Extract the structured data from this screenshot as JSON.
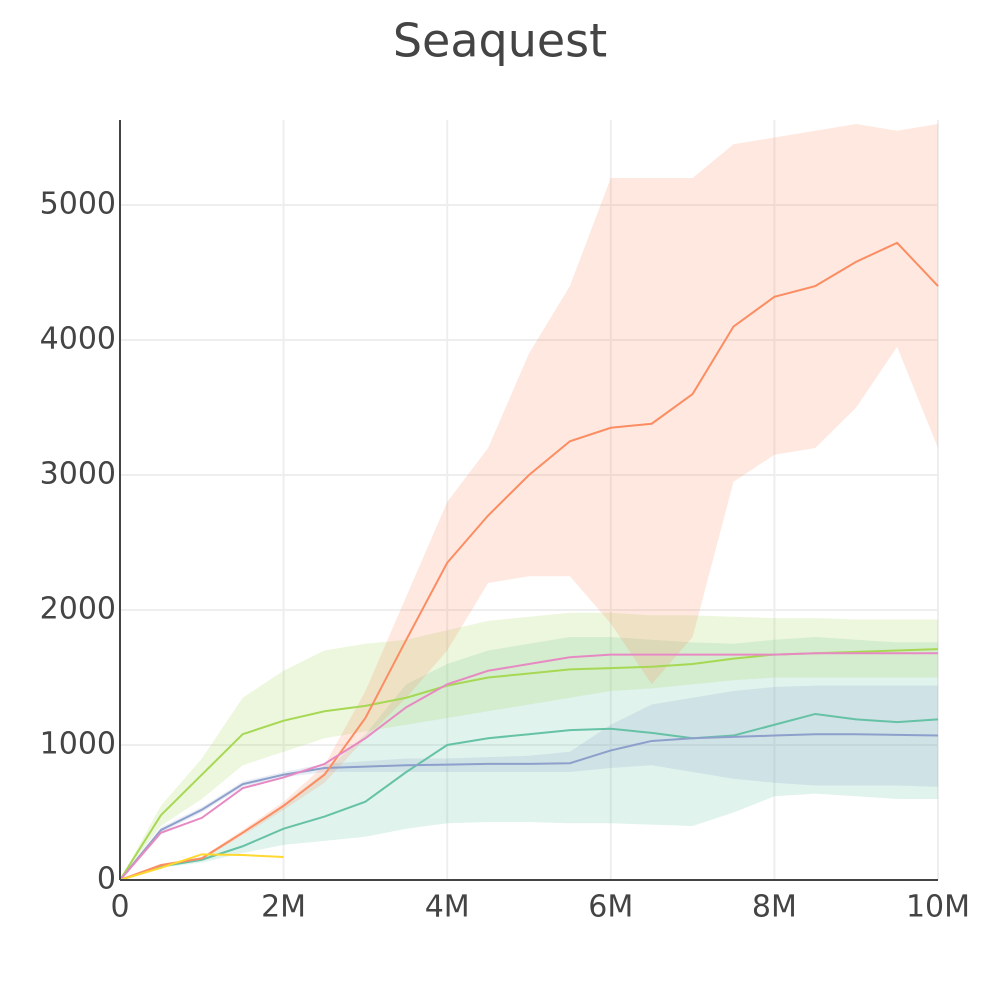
{
  "chart_data": {
    "type": "line",
    "title": "Seaquest",
    "x": [
      0,
      500000,
      1000000,
      1500000,
      2000000,
      2500000,
      3000000,
      3500000,
      4000000,
      4500000,
      5000000,
      5500000,
      6000000,
      6500000,
      7000000,
      7500000,
      8000000,
      8500000,
      9000000,
      9500000,
      10000000
    ],
    "xlim": [
      0,
      10000000
    ],
    "xticks": [
      0,
      {
        "value": 2000000,
        "label": "2M"
      },
      {
        "value": 4000000,
        "label": "4M"
      },
      {
        "value": 6000000,
        "label": "6M"
      },
      {
        "value": 8000000,
        "label": "8M"
      },
      {
        "value": 10000000,
        "label": "10M"
      }
    ],
    "ylim": [
      0,
      5630
    ],
    "yticks": [
      0,
      1000,
      2000,
      3000,
      4000,
      5000
    ],
    "grid": true,
    "series": [
      {
        "color": "#66c2a5",
        "values": [
          0,
          100,
          150,
          250,
          380,
          470,
          580,
          800,
          1000,
          1050,
          1080,
          1110,
          1120,
          1090,
          1050,
          1070,
          1150,
          1230,
          1190,
          1170,
          1190
        ],
        "lower": [
          0,
          90,
          130,
          200,
          260,
          290,
          320,
          380,
          420,
          430,
          430,
          420,
          420,
          410,
          400,
          500,
          620,
          640,
          620,
          600,
          600
        ],
        "upper": [
          0,
          110,
          170,
          330,
          560,
          800,
          1080,
          1450,
          1600,
          1700,
          1750,
          1800,
          1800,
          1780,
          1760,
          1750,
          1780,
          1800,
          1780,
          1760,
          1760
        ]
      },
      {
        "color": "#8da0cb",
        "values": [
          0,
          370,
          520,
          710,
          780,
          830,
          840,
          850,
          855,
          860,
          860,
          865,
          960,
          1030,
          1050,
          1060,
          1070,
          1080,
          1080,
          1075,
          1070
        ],
        "lower": [
          0,
          350,
          500,
          690,
          760,
          800,
          800,
          800,
          800,
          800,
          800,
          800,
          830,
          850,
          800,
          750,
          720,
          700,
          700,
          700,
          690
        ],
        "upper": [
          0,
          390,
          540,
          730,
          800,
          860,
          880,
          900,
          900,
          910,
          920,
          950,
          1150,
          1300,
          1350,
          1400,
          1430,
          1440,
          1440,
          1440,
          1440
        ]
      },
      {
        "color": "#a6d854",
        "values": [
          0,
          480,
          780,
          1080,
          1180,
          1250,
          1290,
          1350,
          1440,
          1500,
          1530,
          1560,
          1570,
          1580,
          1600,
          1640,
          1670,
          1680,
          1690,
          1700,
          1710
        ],
        "lower": [
          0,
          400,
          600,
          850,
          950,
          1050,
          1100,
          1150,
          1200,
          1250,
          1300,
          1350,
          1400,
          1420,
          1450,
          1480,
          1500,
          1500,
          1500,
          1500,
          1500
        ],
        "upper": [
          0,
          550,
          900,
          1350,
          1550,
          1700,
          1750,
          1780,
          1850,
          1920,
          1950,
          1980,
          1980,
          1960,
          1960,
          1950,
          1940,
          1940,
          1930,
          1930,
          1930
        ]
      },
      {
        "color": "#fc8d62",
        "values": [
          0,
          110,
          160,
          350,
          550,
          780,
          1200,
          1780,
          2350,
          2700,
          3000,
          3250,
          3350,
          3380,
          3600,
          4100,
          4320,
          4400,
          4580,
          4720,
          4400
        ],
        "lower": [
          0,
          100,
          150,
          330,
          520,
          720,
          1050,
          1350,
          1700,
          2200,
          2250,
          2250,
          1900,
          1450,
          1800,
          2950,
          3150,
          3200,
          3500,
          3950,
          3200
        ],
        "upper": [
          0,
          120,
          170,
          370,
          580,
          850,
          1400,
          2100,
          2800,
          3200,
          3900,
          4400,
          5200,
          5200,
          5200,
          5450,
          5500,
          5550,
          5600,
          5550,
          5600
        ]
      },
      {
        "color": "#e78ac3",
        "values": [
          0,
          350,
          460,
          680,
          760,
          860,
          1050,
          1280,
          1450,
          1550,
          1600,
          1650,
          1670,
          1670,
          1670,
          1670,
          1670,
          1680,
          1680,
          1680,
          1680
        ]
      },
      {
        "color": "#ffd92f",
        "values": [
          0,
          90,
          190,
          185,
          170,
          null,
          null,
          null,
          null,
          null,
          null,
          null,
          null,
          null,
          null,
          null,
          null,
          null,
          null,
          null,
          null
        ]
      }
    ]
  }
}
